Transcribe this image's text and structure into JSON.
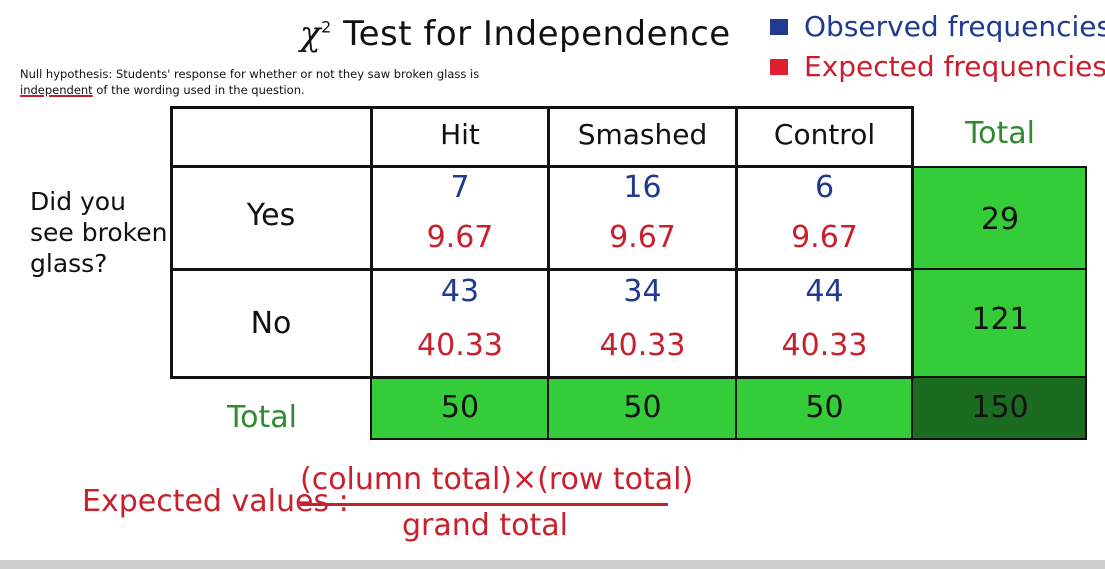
{
  "title": {
    "main": "Test for Independence",
    "chi_symbol": "χ",
    "exponent": "2"
  },
  "hypothesis": {
    "part1": "Null hypothesis: Students' response for whether or not they saw broken glass is ",
    "highlight": "independent",
    "part2": " of the wording used in the question."
  },
  "legend": {
    "observed": {
      "label": "Observed frequencies",
      "color": "#1f3a8f"
    },
    "expected": {
      "label": "Expected frequencies",
      "color": "#cc1f2e"
    }
  },
  "table": {
    "columns": [
      "Hit",
      "Smashed",
      "Control"
    ],
    "total_label": "Total",
    "question": [
      "Did you",
      "see broken",
      "glass?"
    ],
    "rows": [
      {
        "label": "Yes",
        "observed": [
          "7",
          "16",
          "6"
        ],
        "expected": [
          "9.67",
          "9.67",
          "9.67"
        ],
        "total": "29"
      },
      {
        "label": "No",
        "observed": [
          "43",
          "34",
          "44"
        ],
        "expected": [
          "40.33",
          "40.33",
          "40.33"
        ],
        "total": "121"
      }
    ],
    "column_totals": [
      "50",
      "50",
      "50"
    ],
    "grand_total": "150",
    "colors": {
      "total_fill": "#35cc3a",
      "grand_total_fill": "#1b6b20",
      "total_label": "#2e8b2e"
    }
  },
  "formula": {
    "label": "Expected values :",
    "numerator": "(column total)×(row total)",
    "denominator": "grand total"
  }
}
